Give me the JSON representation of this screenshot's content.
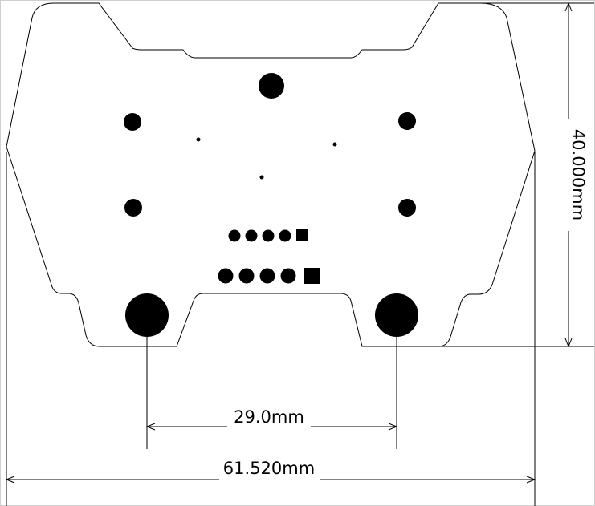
{
  "drawing": {
    "dimensions": {
      "height_label": "40.000mm",
      "hole_spacing_label": "29.0mm",
      "width_label": "61.520mm"
    },
    "colors": {
      "line": "#000000",
      "background": "#ffffff"
    }
  }
}
